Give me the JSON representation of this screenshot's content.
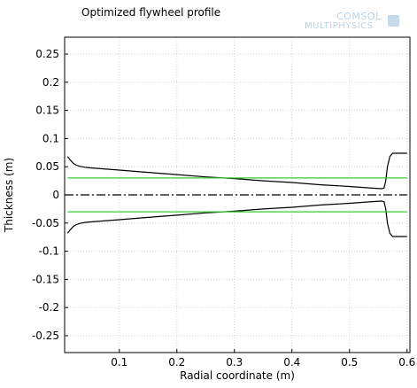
{
  "chart_data": {
    "type": "line",
    "title": "Optimized flywheel profile",
    "xlabel": "Radial coordinate (m)",
    "ylabel": "Thickness (m)",
    "xlim": [
      0.005,
      0.605
    ],
    "ylim": [
      -0.28,
      0.28
    ],
    "xticks": [
      0.1,
      0.2,
      0.3,
      0.4,
      0.5,
      0.6
    ],
    "xtick_labels": [
      "0.1",
      "0.2",
      "0.3",
      "0.4",
      "0.5",
      "0.6"
    ],
    "yticks": [
      0.25,
      0.2,
      0.15,
      0.1,
      0.05,
      0,
      -0.05,
      -0.1,
      -0.15,
      -0.2,
      -0.25
    ],
    "ytick_labels": [
      "0.25",
      "0.2",
      "0.15",
      "0.1",
      "0.05",
      "0",
      "-0.05",
      "-0.1",
      "-0.15",
      "-0.2",
      "-0.25"
    ],
    "grid": true,
    "series": [
      {
        "color": "#000000",
        "style": "solid",
        "x": [
          0.01,
          0.015,
          0.02,
          0.025,
          0.03,
          0.04,
          0.05,
          0.1,
          0.15,
          0.2,
          0.25,
          0.3,
          0.35,
          0.4,
          0.45,
          0.5,
          0.54,
          0.555,
          0.56,
          0.563,
          0.566,
          0.57,
          0.575,
          0.6
        ],
        "y": [
          0.068,
          0.062,
          0.056,
          0.053,
          0.051,
          0.049,
          0.048,
          0.044,
          0.04,
          0.036,
          0.032,
          0.029,
          0.025,
          0.022,
          0.018,
          0.015,
          0.012,
          0.011,
          0.012,
          0.025,
          0.05,
          0.068,
          0.074,
          0.074
        ]
      },
      {
        "color": "#000000",
        "style": "solid",
        "x": [
          0.01,
          0.015,
          0.02,
          0.025,
          0.03,
          0.04,
          0.05,
          0.1,
          0.15,
          0.2,
          0.25,
          0.3,
          0.35,
          0.4,
          0.45,
          0.5,
          0.54,
          0.555,
          0.56,
          0.563,
          0.566,
          0.57,
          0.575,
          0.6
        ],
        "y": [
          -0.068,
          -0.062,
          -0.056,
          -0.053,
          -0.051,
          -0.049,
          -0.048,
          -0.044,
          -0.04,
          -0.036,
          -0.032,
          -0.029,
          -0.025,
          -0.022,
          -0.018,
          -0.015,
          -0.012,
          -0.011,
          -0.012,
          -0.025,
          -0.05,
          -0.068,
          -0.074,
          -0.074
        ]
      },
      {
        "color": "#33cc33",
        "style": "solid",
        "x": [
          0.01,
          0.6
        ],
        "y": [
          0.03,
          0.03
        ]
      },
      {
        "color": "#33cc33",
        "style": "solid",
        "x": [
          0.01,
          0.6
        ],
        "y": [
          -0.03,
          -0.03
        ]
      },
      {
        "color": "#000000",
        "style": "dash-dot",
        "x": [
          0.005,
          0.6
        ],
        "y": [
          0,
          0
        ]
      }
    ]
  },
  "logo": {
    "line1": "COMSOL",
    "line2": "MULTIPHYSICS"
  }
}
